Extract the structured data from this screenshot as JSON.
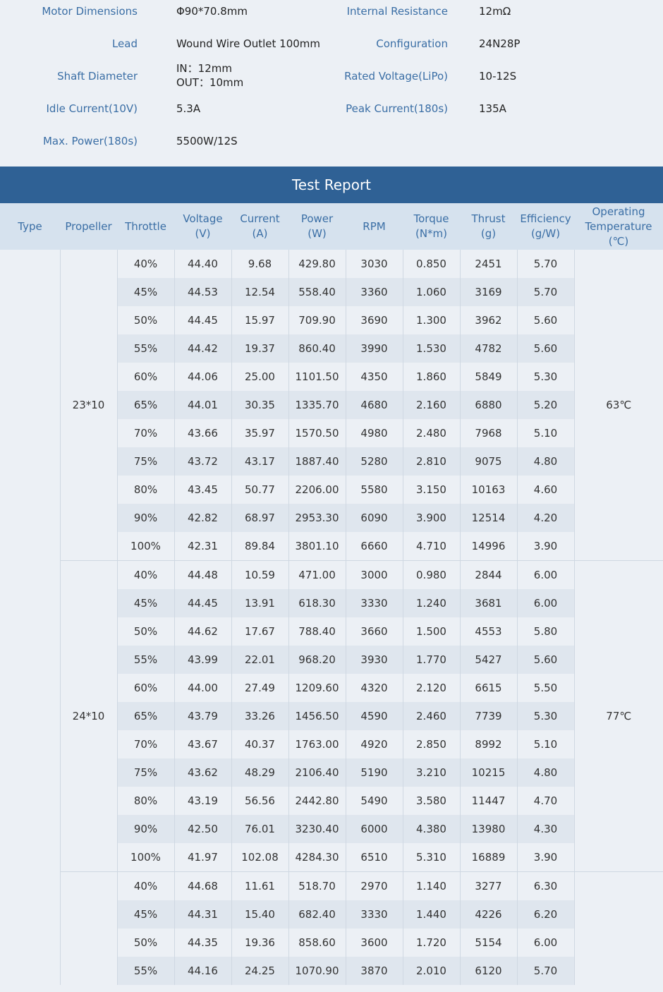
{
  "specs": {
    "motor_dimensions": {
      "label": "Motor Dimensions",
      "value": "Φ90*70.8mm"
    },
    "internal_resistance": {
      "label": "Internal Resistance",
      "value": "12mΩ"
    },
    "lead": {
      "label": "Lead",
      "value": "Wound Wire Outlet 100mm"
    },
    "configuration": {
      "label": "Configuration",
      "value": "24N28P"
    },
    "shaft_diameter": {
      "label": "Shaft Diameter",
      "value_in": "IN：12mm",
      "value_out": "OUT：10mm"
    },
    "rated_voltage": {
      "label": "Rated Voltage(LiPo)",
      "value": "10-12S"
    },
    "idle_current": {
      "label": "Idle Current(10V)",
      "value": "5.3A"
    },
    "peak_current": {
      "label": "Peak Current(180s)",
      "value": "135A"
    },
    "max_power": {
      "label": "Max. Power(180s)",
      "value": "5500W/12S"
    }
  },
  "report": {
    "title": "Test Report",
    "headers": {
      "type": "Type",
      "propeller": "Propeller",
      "throttle": "Throttle",
      "voltage": [
        "Voltage",
        "(V)"
      ],
      "current": [
        "Current",
        "(A)"
      ],
      "power": [
        "Power",
        "(W)"
      ],
      "rpm": "RPM",
      "torque": [
        "Torque",
        "(N*m)"
      ],
      "thrust": [
        "Thrust",
        "(g)"
      ],
      "efficiency": [
        "Efficiency",
        "(g/W)"
      ],
      "temperature": [
        "Operating",
        "Temperature",
        "(℃)"
      ]
    },
    "groups": [
      {
        "propeller": "23*10",
        "temperature": "63℃",
        "rows": [
          [
            "40%",
            "44.40",
            "9.68",
            "429.80",
            "3030",
            "0.850",
            "2451",
            "5.70"
          ],
          [
            "45%",
            "44.53",
            "12.54",
            "558.40",
            "3360",
            "1.060",
            "3169",
            "5.70"
          ],
          [
            "50%",
            "44.45",
            "15.97",
            "709.90",
            "3690",
            "1.300",
            "3962",
            "5.60"
          ],
          [
            "55%",
            "44.42",
            "19.37",
            "860.40",
            "3990",
            "1.530",
            "4782",
            "5.60"
          ],
          [
            "60%",
            "44.06",
            "25.00",
            "1101.50",
            "4350",
            "1.860",
            "5849",
            "5.30"
          ],
          [
            "65%",
            "44.01",
            "30.35",
            "1335.70",
            "4680",
            "2.160",
            "6880",
            "5.20"
          ],
          [
            "70%",
            "43.66",
            "35.97",
            "1570.50",
            "4980",
            "2.480",
            "7968",
            "5.10"
          ],
          [
            "75%",
            "43.72",
            "43.17",
            "1887.40",
            "5280",
            "2.810",
            "9075",
            "4.80"
          ],
          [
            "80%",
            "43.45",
            "50.77",
            "2206.00",
            "5580",
            "3.150",
            "10163",
            "4.60"
          ],
          [
            "90%",
            "42.82",
            "68.97",
            "2953.30",
            "6090",
            "3.900",
            "12514",
            "4.20"
          ],
          [
            "100%",
            "42.31",
            "89.84",
            "3801.10",
            "6660",
            "4.710",
            "14996",
            "3.90"
          ]
        ]
      },
      {
        "propeller": "24*10",
        "temperature": "77℃",
        "rows": [
          [
            "40%",
            "44.48",
            "10.59",
            "471.00",
            "3000",
            "0.980",
            "2844",
            "6.00"
          ],
          [
            "45%",
            "44.45",
            "13.91",
            "618.30",
            "3330",
            "1.240",
            "3681",
            "6.00"
          ],
          [
            "50%",
            "44.62",
            "17.67",
            "788.40",
            "3660",
            "1.500",
            "4553",
            "5.80"
          ],
          [
            "55%",
            "43.99",
            "22.01",
            "968.20",
            "3930",
            "1.770",
            "5427",
            "5.60"
          ],
          [
            "60%",
            "44.00",
            "27.49",
            "1209.60",
            "4320",
            "2.120",
            "6615",
            "5.50"
          ],
          [
            "65%",
            "43.79",
            "33.26",
            "1456.50",
            "4590",
            "2.460",
            "7739",
            "5.30"
          ],
          [
            "70%",
            "43.67",
            "40.37",
            "1763.00",
            "4920",
            "2.850",
            "8992",
            "5.10"
          ],
          [
            "75%",
            "43.62",
            "48.29",
            "2106.40",
            "5190",
            "3.210",
            "10215",
            "4.80"
          ],
          [
            "80%",
            "43.19",
            "56.56",
            "2442.80",
            "5490",
            "3.580",
            "11447",
            "4.70"
          ],
          [
            "90%",
            "42.50",
            "76.01",
            "3230.40",
            "6000",
            "4.380",
            "13980",
            "4.30"
          ],
          [
            "100%",
            "41.97",
            "102.08",
            "4284.30",
            "6510",
            "5.310",
            "16889",
            "3.90"
          ]
        ]
      },
      {
        "propeller": "",
        "temperature": "",
        "rows": [
          [
            "40%",
            "44.68",
            "11.61",
            "518.70",
            "2970",
            "1.140",
            "3277",
            "6.30"
          ],
          [
            "45%",
            "44.31",
            "15.40",
            "682.40",
            "3330",
            "1.440",
            "4226",
            "6.20"
          ],
          [
            "50%",
            "44.35",
            "19.36",
            "858.60",
            "3600",
            "1.720",
            "5154",
            "6.00"
          ],
          [
            "55%",
            "44.16",
            "24.25",
            "1070.90",
            "3870",
            "2.010",
            "6120",
            "5.70"
          ]
        ]
      }
    ]
  }
}
